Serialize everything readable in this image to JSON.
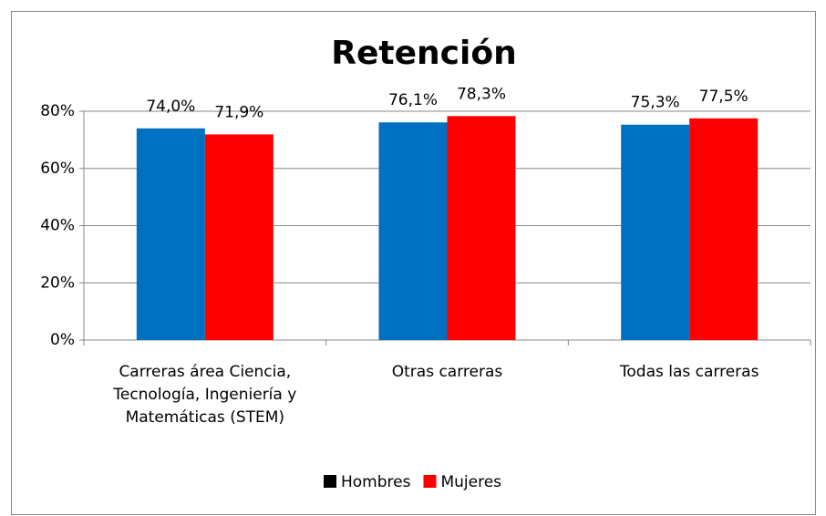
{
  "chart_data": {
    "type": "bar",
    "title": "Retención",
    "categories": [
      "Carreras área Ciencia, Tecnología, Ingeniería y Matemáticas (STEM)",
      "Otras carreras",
      "Todas las carreras"
    ],
    "series": [
      {
        "name": "Hombres",
        "color": "#0070c0",
        "legend_color": "#000000",
        "values": [
          74.0,
          76.1,
          75.3
        ],
        "value_labels": [
          "74,0%",
          "76,1%",
          "75,3%"
        ]
      },
      {
        "name": "Mujeres",
        "color": "#ff0000",
        "legend_color": "#ff0000",
        "values": [
          71.9,
          78.3,
          77.5
        ],
        "value_labels": [
          "71,9%",
          "78,3%",
          "77,5%"
        ]
      }
    ],
    "ylim": [
      0,
      80
    ],
    "yticks": [
      {
        "value": 0,
        "label": "0%"
      },
      {
        "value": 20,
        "label": "20%"
      },
      {
        "value": 40,
        "label": "40%"
      },
      {
        "value": 60,
        "label": "60%"
      },
      {
        "value": 80,
        "label": "80%"
      }
    ],
    "grid": true,
    "legend": "bottom"
  }
}
